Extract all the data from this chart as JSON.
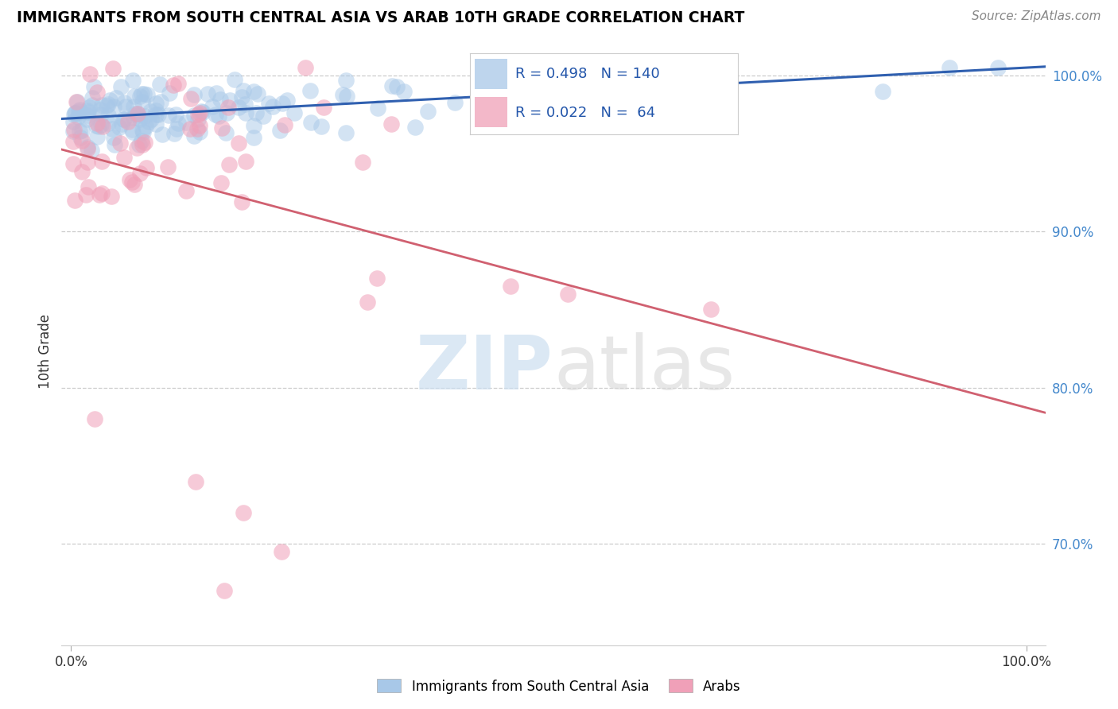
{
  "title": "IMMIGRANTS FROM SOUTH CENTRAL ASIA VS ARAB 10TH GRADE CORRELATION CHART",
  "source": "Source: ZipAtlas.com",
  "ylabel": "10th Grade",
  "R_blue": 0.498,
  "N_blue": 140,
  "R_pink": 0.022,
  "N_pink": 64,
  "blue_color": "#a8c8e8",
  "pink_color": "#f0a0b8",
  "line_blue": "#3060b0",
  "line_pink": "#d06070",
  "legend_label_blue": "Immigrants from South Central Asia",
  "legend_label_pink": "Arabs",
  "watermark_zip": "ZIP",
  "watermark_atlas": "atlas",
  "ytick_positions": [
    0.7,
    0.8,
    0.9,
    1.0
  ],
  "ytick_labels": [
    "70.0%",
    "80.0%",
    "90.0%",
    "100.0%"
  ],
  "ylim_low": 0.635,
  "ylim_high": 1.012,
  "xlim_low": -0.01,
  "xlim_high": 1.02
}
